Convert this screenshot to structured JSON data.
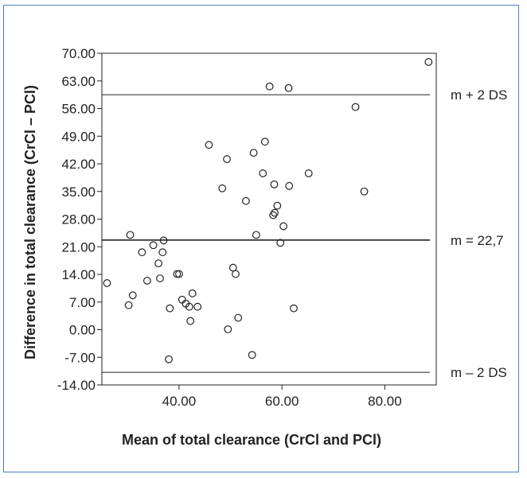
{
  "chart_data": {
    "type": "scatter",
    "title": "",
    "xlabel": "Mean of total clearance (CrCl and PCl)",
    "ylabel": "Difference in total clearance (CrCl – PCl)",
    "xlim": [
      25,
      90
    ],
    "ylim": [
      -14,
      70
    ],
    "xticks": [
      40,
      60,
      80
    ],
    "xtick_labels": [
      "40.00",
      "60.00",
      "80.00"
    ],
    "yticks": [
      70,
      63,
      56,
      49,
      42,
      35,
      28,
      21,
      14,
      7,
      0,
      -7,
      -14
    ],
    "ytick_labels": [
      "70.00",
      "63.00",
      "56.00",
      "49.00",
      "42.00",
      "35.00",
      "28.00",
      "21.00",
      "14.00",
      "7.00",
      "0.00",
      "-7.00",
      "-14.00"
    ],
    "reference_lines": [
      {
        "label": "m + 2 DS",
        "y": 59.5
      },
      {
        "label": "m = 22,7",
        "y": 22.7
      },
      {
        "label": "m – 2 DS",
        "y": -10.8
      }
    ],
    "points": [
      {
        "x": 26.0,
        "y": 11.8
      },
      {
        "x": 30.2,
        "y": 6.2
      },
      {
        "x": 30.5,
        "y": 24.0
      },
      {
        "x": 31.0,
        "y": 8.7
      },
      {
        "x": 32.8,
        "y": 19.6
      },
      {
        "x": 33.8,
        "y": 12.4
      },
      {
        "x": 35.0,
        "y": 21.4
      },
      {
        "x": 36.0,
        "y": 16.8
      },
      {
        "x": 36.3,
        "y": 13.0
      },
      {
        "x": 36.8,
        "y": 19.6
      },
      {
        "x": 37.0,
        "y": 22.6
      },
      {
        "x": 38.0,
        "y": -7.5
      },
      {
        "x": 38.2,
        "y": 5.4
      },
      {
        "x": 39.6,
        "y": 14.1
      },
      {
        "x": 40.0,
        "y": 14.1
      },
      {
        "x": 40.6,
        "y": 7.6
      },
      {
        "x": 41.3,
        "y": 6.6
      },
      {
        "x": 42.0,
        "y": 5.8
      },
      {
        "x": 42.2,
        "y": 2.2
      },
      {
        "x": 42.6,
        "y": 9.2
      },
      {
        "x": 43.6,
        "y": 5.8
      },
      {
        "x": 45.8,
        "y": 46.8
      },
      {
        "x": 48.4,
        "y": 35.8
      },
      {
        "x": 49.3,
        "y": 43.2
      },
      {
        "x": 49.5,
        "y": 0.1
      },
      {
        "x": 50.5,
        "y": 15.7
      },
      {
        "x": 51.0,
        "y": 14.1
      },
      {
        "x": 51.5,
        "y": 3.0
      },
      {
        "x": 53.0,
        "y": 32.6
      },
      {
        "x": 54.2,
        "y": -6.4
      },
      {
        "x": 54.5,
        "y": 44.8
      },
      {
        "x": 55.0,
        "y": 24.0
      },
      {
        "x": 56.3,
        "y": 39.6
      },
      {
        "x": 56.7,
        "y": 47.6
      },
      {
        "x": 57.6,
        "y": 61.6
      },
      {
        "x": 58.3,
        "y": 29.0
      },
      {
        "x": 58.5,
        "y": 36.8
      },
      {
        "x": 58.6,
        "y": 29.6
      },
      {
        "x": 59.1,
        "y": 31.4
      },
      {
        "x": 59.7,
        "y": 22.0
      },
      {
        "x": 60.3,
        "y": 26.2
      },
      {
        "x": 61.3,
        "y": 61.2
      },
      {
        "x": 61.4,
        "y": 36.4
      },
      {
        "x": 62.3,
        "y": 5.4
      },
      {
        "x": 65.2,
        "y": 39.6
      },
      {
        "x": 74.3,
        "y": 56.4
      },
      {
        "x": 76.0,
        "y": 35.0
      },
      {
        "x": 88.5,
        "y": 67.8
      }
    ]
  }
}
